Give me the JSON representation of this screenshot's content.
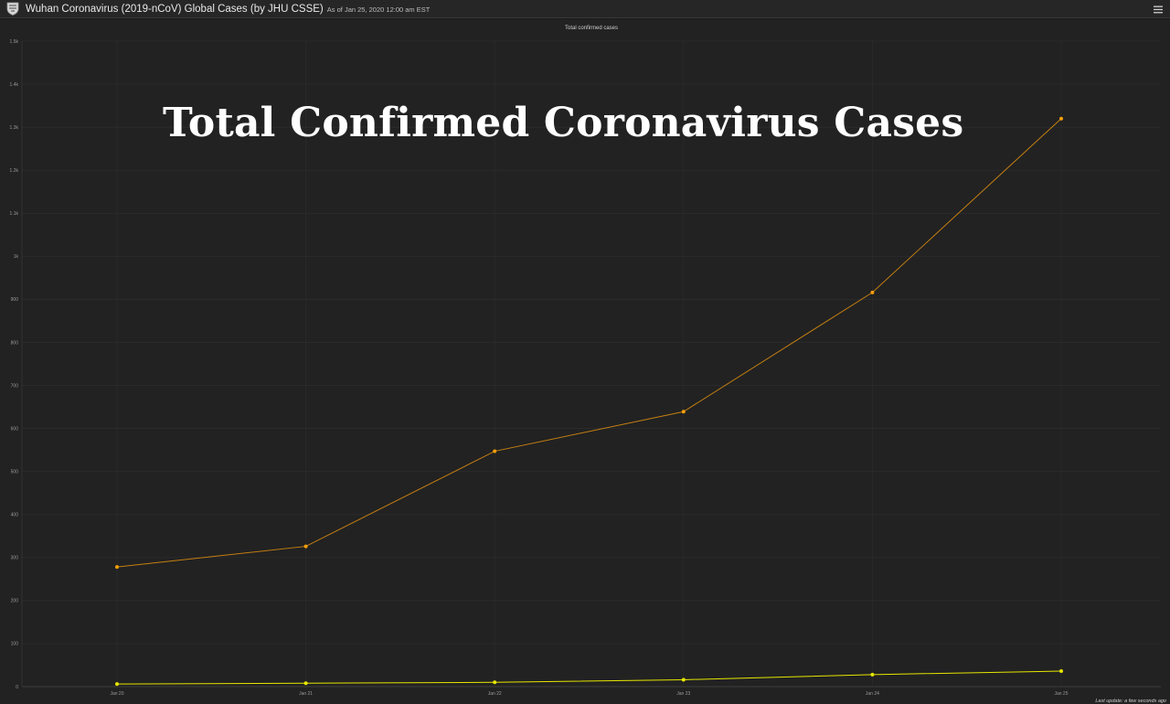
{
  "header": {
    "title": "Wuhan Coronavirus (2019-nCoV) Global Cases (by JHU CSSE)",
    "as_of": "As of Jan 25, 2020 12:00 am EST",
    "logo_icon": "university-shield-icon",
    "menu_icon": "hamburger-menu-icon"
  },
  "overlay": {
    "title": "Total Confirmed Coronavirus Cases"
  },
  "footer": {
    "last_update": "Last update: a few seconds ago"
  },
  "colors": {
    "background": "#222222",
    "series_main": "#f59e0b",
    "series_main_line": "#c47f12",
    "series_secondary": "#e6e600"
  },
  "chart_data": {
    "type": "line",
    "title": "Total confirmed cases",
    "xlabel": "",
    "ylabel": "",
    "categories": [
      "Jan 20",
      "Jan 21",
      "Jan 22",
      "Jan 23",
      "Jan 24",
      "Jan 25"
    ],
    "ylim": [
      0,
      1500
    ],
    "yticks": [
      0,
      100,
      200,
      300,
      400,
      500,
      600,
      700,
      800,
      900,
      1000,
      1100,
      1200,
      1300,
      1400,
      1500
    ],
    "ytick_labels": [
      "0",
      "100",
      "200",
      "300",
      "400",
      "500",
      "600",
      "700",
      "800",
      "900",
      "1k",
      "1.1k",
      "1.2k",
      "1.3k",
      "1.4k",
      "1.5k"
    ],
    "grid": true,
    "series": [
      {
        "color": "#f59e0b",
        "values": [
          278,
          326,
          547,
          639,
          916,
          1320
        ]
      },
      {
        "color": "#e6e600",
        "values": [
          6,
          8,
          10,
          16,
          28,
          36
        ]
      }
    ]
  }
}
